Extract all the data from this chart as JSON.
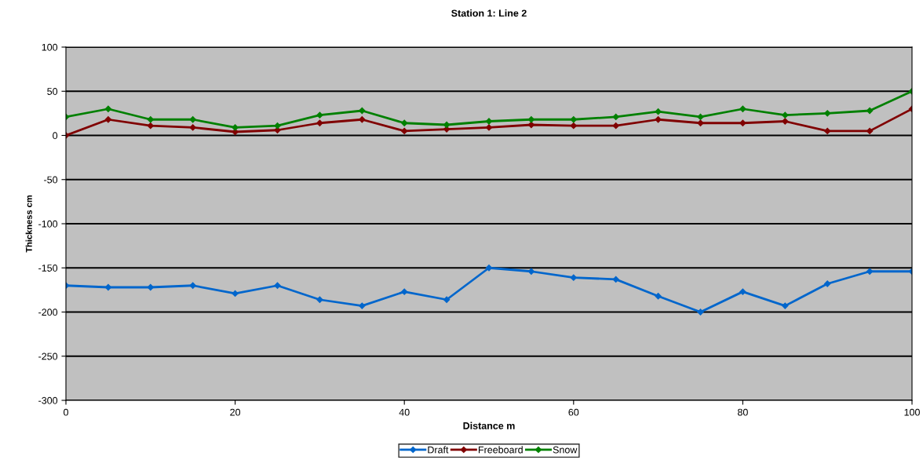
{
  "chart_data": {
    "type": "line",
    "title": "Station 1: Line 2",
    "xlabel": "Distance m",
    "ylabel": "Thickness cm",
    "x": [
      0,
      5,
      10,
      15,
      20,
      25,
      30,
      35,
      40,
      45,
      50,
      55,
      60,
      65,
      70,
      75,
      80,
      85,
      90,
      95,
      100
    ],
    "series": [
      {
        "name": "Draft",
        "color": "#0066cc",
        "values": [
          -170,
          -172,
          -172,
          -170,
          -179,
          -170,
          -186,
          -193,
          -177,
          -186,
          -150,
          -154,
          -161,
          -163,
          -182,
          -200,
          -177,
          -193,
          -168,
          -154,
          -154
        ]
      },
      {
        "name": "Freeboard",
        "color": "#800000",
        "values": [
          0,
          18,
          11,
          9,
          4,
          6,
          14,
          18,
          5,
          7,
          9,
          12,
          11,
          11,
          18,
          14,
          14,
          16,
          5,
          5,
          30
        ]
      },
      {
        "name": "Snow",
        "color": "#008000",
        "values": [
          21,
          30,
          18,
          18,
          9,
          11,
          23,
          28,
          14,
          12,
          16,
          18,
          18,
          21,
          27,
          21,
          30,
          23,
          25,
          28,
          50
        ]
      }
    ],
    "xlim": [
      0,
      100
    ],
    "xticks": [
      0,
      20,
      40,
      60,
      80,
      100
    ],
    "ylim": [
      -300,
      100
    ],
    "yticks": [
      -300,
      -250,
      -200,
      -150,
      -100,
      -50,
      0,
      50,
      100
    ],
    "grid": "y",
    "legend": "bottom",
    "marker": "diamond",
    "line_style": "solid"
  }
}
